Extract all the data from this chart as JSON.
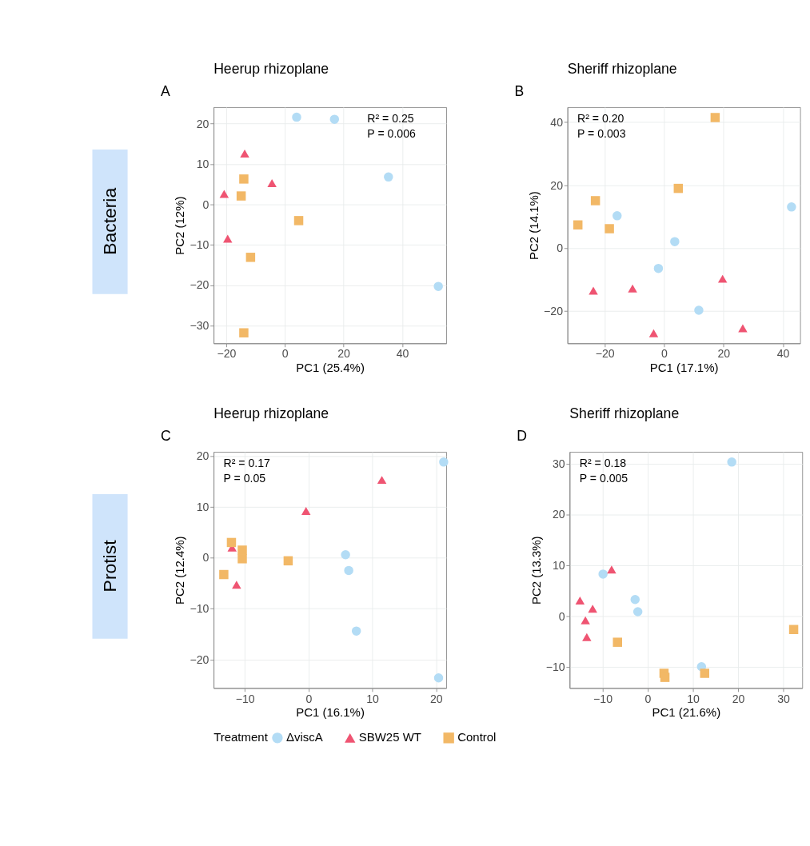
{
  "chart_data": [
    {
      "type": "scatter",
      "title": "Heerup rhizoplane",
      "xlabel": "PC1 (25.4%)",
      "ylabel": "PC2 (12%)",
      "xlim": [
        -24.3,
        55
      ],
      "ylim": [
        -34.4,
        24.1
      ],
      "xticks": [
        -20,
        0,
        20,
        40
      ],
      "yticks": [
        -30,
        -20,
        -10,
        0,
        10,
        20
      ],
      "grid": true,
      "legend": "bottom",
      "legend_title": "Treatment",
      "annotations": [
        "A",
        "R² = 0.25",
        "P = 0.006",
        "Bacteria"
      ],
      "series": [
        {
          "name": "ΔviscA",
          "color": "#b3dcf5",
          "marker": "circle",
          "x": [
            4.0,
            16.9,
            35.3,
            52.3
          ],
          "values": [
            21.6,
            21.1,
            6.8,
            -20.3
          ]
        },
        {
          "name": "SBW25 WT",
          "color": "#ef5472",
          "marker": "triangle",
          "x": [
            -13.7,
            -4.4,
            -20.7,
            -19.5
          ],
          "values": [
            12.6,
            5.3,
            2.6,
            -8.5
          ]
        },
        {
          "name": "Control",
          "color": "#f2b866",
          "marker": "square",
          "x": [
            -14.0,
            -14.9,
            4.7,
            -11.7,
            -14.0
          ],
          "values": [
            6.3,
            2.1,
            -4.0,
            -13.1,
            -31.8
          ]
        }
      ]
    },
    {
      "type": "scatter",
      "title": "Sheriff rhizoplane",
      "xlabel": "PC1 (17.1%)",
      "ylabel": "PC2 (14.1%)",
      "xlim": [
        -32.5,
        45.8
      ],
      "ylim": [
        -30.2,
        44.8
      ],
      "xticks": [
        -20,
        0,
        20,
        40
      ],
      "yticks": [
        -20,
        0,
        20,
        40
      ],
      "grid": true,
      "annotations": [
        "B",
        "R² = 0.20",
        "P = 0.003"
      ],
      "series": [
        {
          "name": "ΔviscA",
          "color": "#b3dcf5",
          "marker": "circle",
          "x": [
            -15.8,
            3.6,
            -1.9,
            11.7,
            42.9
          ],
          "values": [
            10.3,
            2.1,
            -6.4,
            -19.7,
            13.1
          ]
        },
        {
          "name": "SBW25 WT",
          "color": "#ef5472",
          "marker": "triangle",
          "x": [
            -23.8,
            -10.6,
            19.7,
            26.5,
            -3.5
          ],
          "values": [
            -13.5,
            -12.8,
            -9.7,
            -25.4,
            -27.0
          ]
        },
        {
          "name": "Control",
          "color": "#f2b866",
          "marker": "square",
          "x": [
            17.2,
            4.8,
            -23.1,
            -29.0,
            -18.4
          ],
          "values": [
            41.5,
            19.0,
            15.1,
            7.4,
            6.2
          ]
        }
      ]
    },
    {
      "type": "scatter",
      "title": "Heerup rhizoplane",
      "xlabel": "PC1 (16.1%)",
      "ylabel": "PC2 (12.4%)",
      "xlim": [
        -14.9,
        21.6
      ],
      "ylim": [
        -25.6,
        20.8
      ],
      "xticks": [
        -10,
        0,
        10,
        20
      ],
      "yticks": [
        -20,
        -10,
        0,
        10,
        20
      ],
      "grid": true,
      "annotations": [
        "C",
        "R² = 0.17",
        "P = 0.05",
        "Protist"
      ],
      "series": [
        {
          "name": "ΔviscA",
          "color": "#b3dcf5",
          "marker": "circle",
          "x": [
            21.2,
            5.8,
            6.3,
            7.5,
            20.4
          ],
          "values": [
            18.8,
            0.6,
            -2.5,
            -14.4,
            -23.6
          ]
        },
        {
          "name": "SBW25 WT",
          "color": "#ef5472",
          "marker": "triangle",
          "x": [
            11.5,
            -0.4,
            -12.0,
            -11.3
          ],
          "values": [
            15.3,
            9.2,
            2.0,
            -5.3
          ]
        },
        {
          "name": "Control",
          "color": "#f2b866",
          "marker": "square",
          "x": [
            -12.1,
            -10.4,
            -10.4,
            -3.2,
            -13.3
          ],
          "values": [
            3.0,
            1.5,
            -0.2,
            -0.6,
            -3.3
          ]
        }
      ]
    },
    {
      "type": "scatter",
      "title": "Sheriff rhizoplane",
      "xlabel": "PC1 (21.6%)",
      "ylabel": "PC2 (13.3%)",
      "xlim": [
        -17.3,
        34.2
      ],
      "ylim": [
        -14.1,
        32.3
      ],
      "xticks": [
        -10,
        0,
        10,
        20,
        30
      ],
      "yticks": [
        -10,
        0,
        10,
        20,
        30
      ],
      "grid": true,
      "annotations": [
        "D",
        "R² = 0.18",
        "P = 0.005"
      ],
      "series": [
        {
          "name": "ΔviscA",
          "color": "#b3dcf5",
          "marker": "circle",
          "x": [
            18.6,
            -9.9,
            -2.8,
            -2.2,
            11.9
          ],
          "values": [
            30.3,
            8.3,
            3.3,
            0.9,
            -9.9
          ]
        },
        {
          "name": "SBW25 WT",
          "color": "#ef5472",
          "marker": "triangle",
          "x": [
            -8.0,
            -15.0,
            -12.2,
            -13.8,
            -13.5
          ],
          "values": [
            9.2,
            3.1,
            1.5,
            -0.8,
            -4.1
          ]
        },
        {
          "name": "Control",
          "color": "#f2b866",
          "marker": "square",
          "x": [
            -6.7,
            3.6,
            3.8,
            12.6,
            32.3
          ],
          "values": [
            -5.1,
            -11.2,
            -12.0,
            -11.2,
            -2.6
          ]
        }
      ]
    }
  ]
}
